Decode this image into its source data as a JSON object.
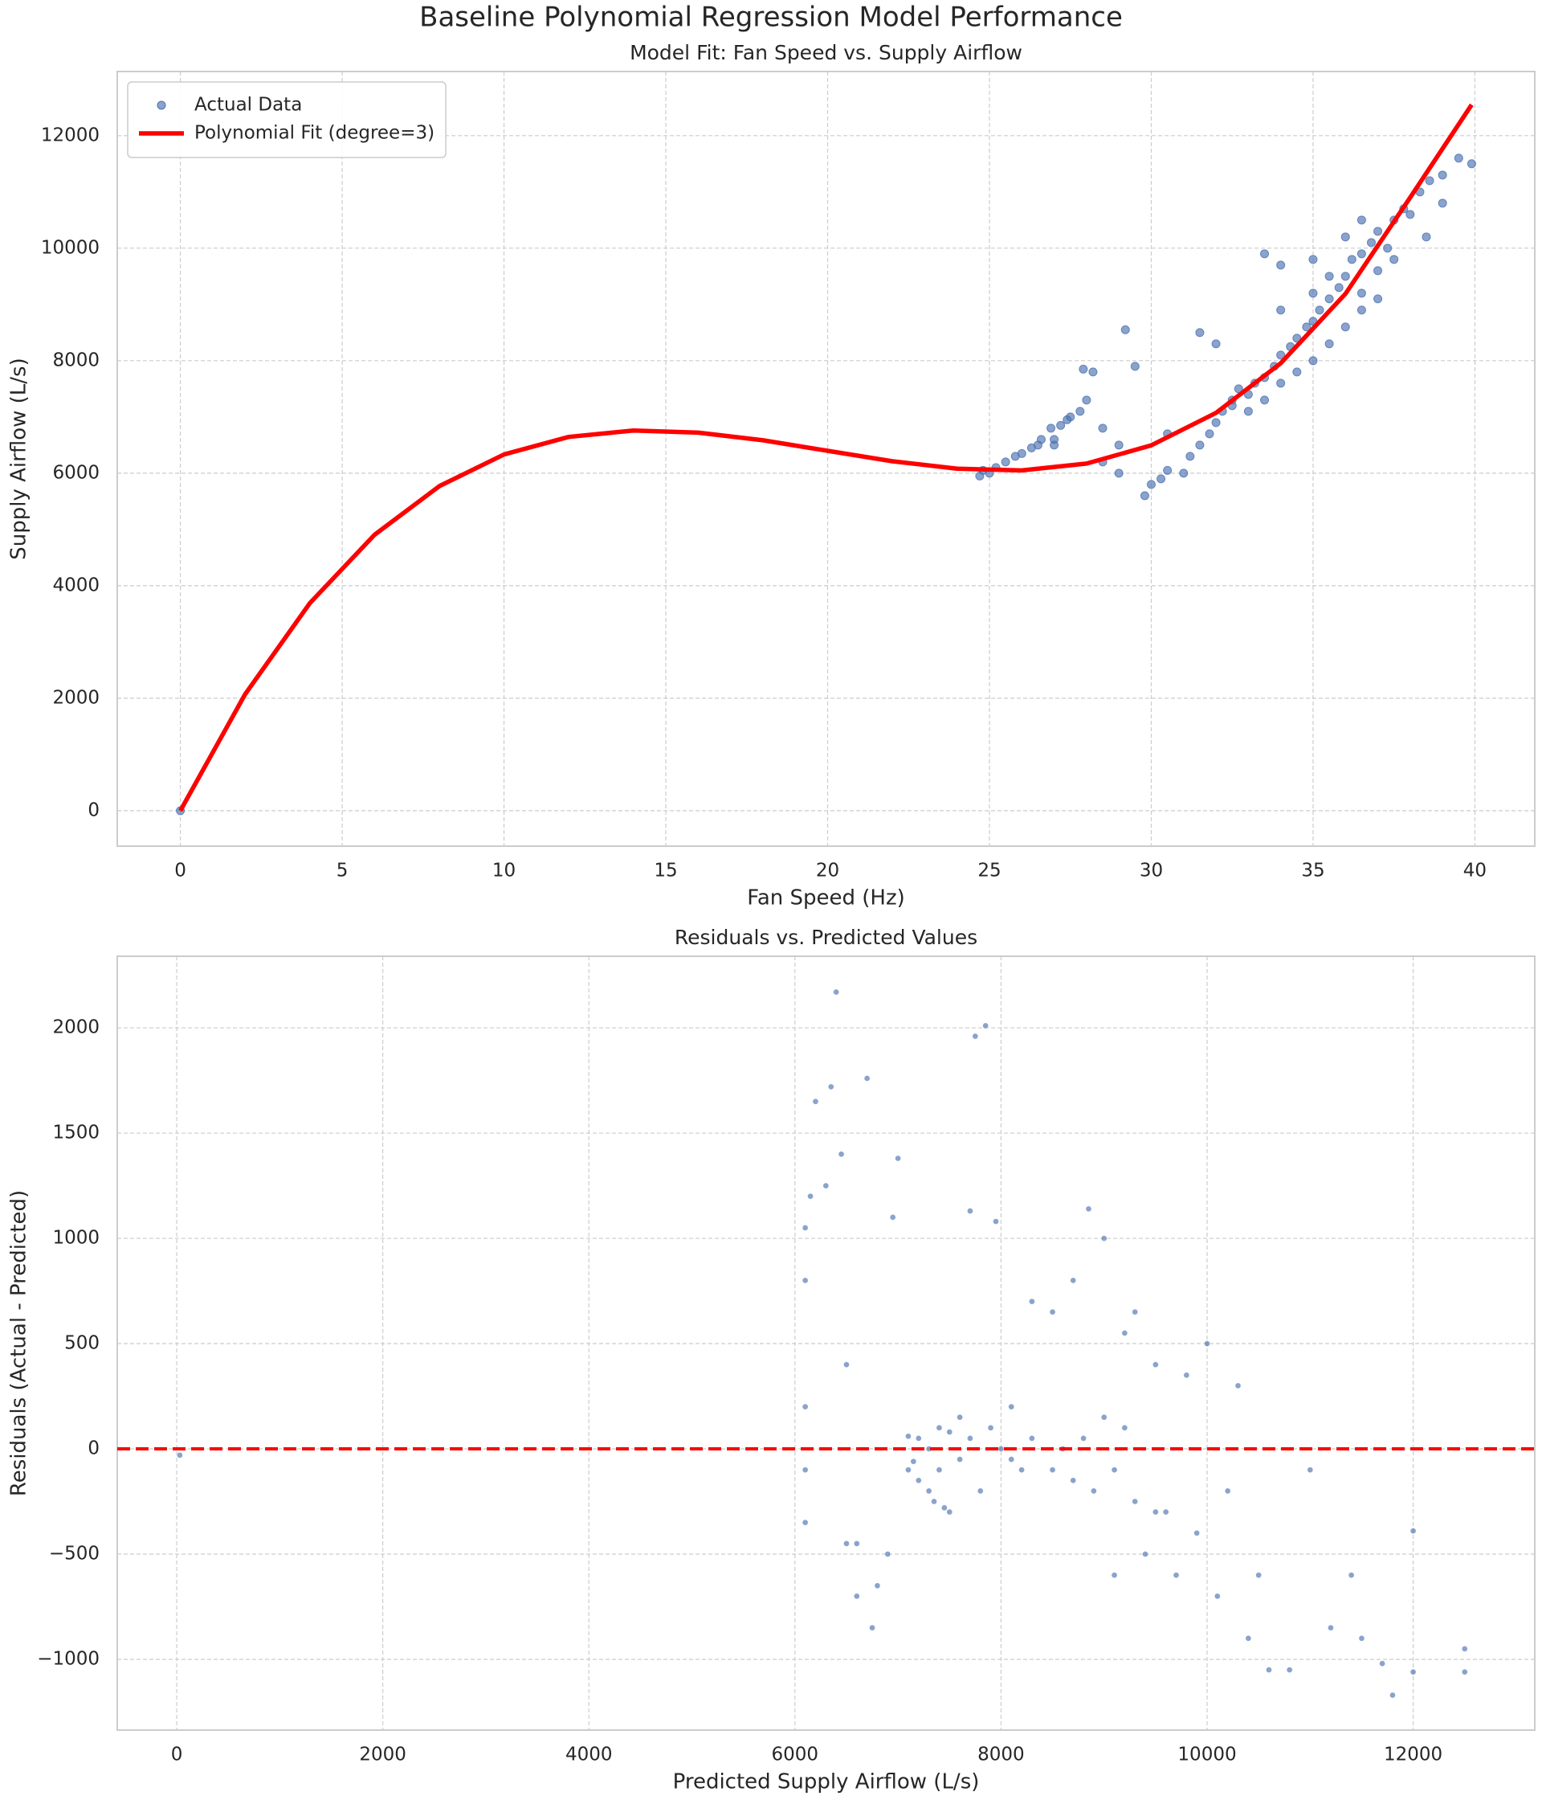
{
  "title": "Baseline Polynomial Regression Model Performance",
  "chart_data": [
    {
      "type": "scatter",
      "title": "Model Fit: Fan Speed vs. Supply Airflow",
      "xlabel": "Fan Speed (Hz)",
      "ylabel": "Supply Airflow (L/s)",
      "xlim": [
        -1.95,
        41.85
      ],
      "ylim": [
        -630,
        13140
      ],
      "xticks": [
        0,
        5,
        10,
        15,
        20,
        25,
        30,
        35,
        40
      ],
      "yticks": [
        0,
        2000,
        4000,
        6000,
        8000,
        10000,
        12000
      ],
      "grid": true,
      "legend": "upper left",
      "series": [
        {
          "name": "Actual Data",
          "type": "scatter",
          "color": "#4c72b0",
          "x": [
            0,
            24.7,
            24.8,
            25,
            25.2,
            25.5,
            25.8,
            26,
            26.3,
            26.6,
            26.9,
            27.2,
            27.5,
            27.8,
            28,
            27.9,
            28.2,
            26.5,
            27,
            27.4,
            28.5,
            29,
            29.2,
            29.5,
            29.8,
            30,
            30.3,
            30.5,
            31,
            31.2,
            31.5,
            31.8,
            32,
            32.2,
            32.5,
            32.7,
            33,
            33.2,
            33.5,
            33.8,
            34,
            34.3,
            34.5,
            34.8,
            35,
            35.2,
            35.5,
            35.8,
            36,
            36.2,
            36.5,
            36.8,
            37,
            37.3,
            37.5,
            37.8,
            38,
            38.3,
            38.6,
            39,
            39.5,
            39.9,
            33.5,
            34,
            35,
            35.5,
            36,
            36.5,
            37,
            32.5,
            33,
            33.5,
            34,
            34.5,
            35,
            35.5,
            36,
            36.5,
            37,
            31.5,
            32,
            34,
            35,
            28.5,
            29,
            27,
            30.5,
            36.5,
            37.5,
            38.5,
            39
          ],
          "values": [
            0,
            5950,
            6050,
            6000,
            6100,
            6200,
            6300,
            6350,
            6450,
            6600,
            6800,
            6850,
            7000,
            7100,
            7300,
            7850,
            7800,
            6500,
            6600,
            6950,
            6800,
            6500,
            8550,
            7900,
            5600,
            5800,
            5900,
            6050,
            6000,
            6300,
            6500,
            6700,
            6900,
            7100,
            7300,
            7500,
            7400,
            7600,
            7700,
            7900,
            8100,
            8250,
            8400,
            8600,
            8700,
            8900,
            9100,
            9300,
            9500,
            9800,
            9900,
            10100,
            10300,
            10000,
            10500,
            10700,
            10600,
            11000,
            11200,
            11300,
            11600,
            11500,
            9900,
            9700,
            9800,
            9500,
            10200,
            9200,
            9600,
            7200,
            7100,
            7300,
            7600,
            7800,
            8000,
            8300,
            8600,
            8900,
            9100,
            8500,
            8300,
            8900,
            9200,
            6200,
            6000,
            6500,
            6700,
            10500,
            9800,
            10200,
            10800
          ]
        },
        {
          "name": "Polynomial Fit (degree=3)",
          "type": "line",
          "color": "#ff0000",
          "x": [
            0,
            2,
            4,
            6,
            8,
            10,
            12,
            14,
            16,
            18,
            20,
            22,
            24,
            26,
            28,
            30,
            32,
            34,
            36,
            38,
            39.9
          ],
          "values": [
            0,
            2070,
            3689,
            4905,
            5769,
            6333,
            6645,
            6758,
            6721,
            6585,
            6398,
            6212,
            6080,
            6049,
            6171,
            6495,
            7072,
            7954,
            9189,
            10900,
            12550
          ]
        }
      ]
    },
    {
      "type": "scatter",
      "title": "Residuals vs. Predicted Values",
      "xlabel": "Predicted Supply Airflow (L/s)",
      "ylabel": "Residuals (Actual - Predicted)",
      "xlim": [
        -577,
        13180
      ],
      "ylim": [
        -1336,
        2340
      ],
      "xticks": [
        0,
        2000,
        4000,
        6000,
        8000,
        10000,
        12000
      ],
      "yticks": [
        {
          "value": -1000,
          "label": "−1000"
        },
        {
          "value": -500,
          "label": "−500"
        },
        0,
        500,
        1000,
        1500,
        2000
      ],
      "grid": true,
      "hline": 0,
      "hline_color": "#ff0000",
      "series": [
        {
          "type": "scatter",
          "color": "#4c72b0",
          "x": [
            30,
            6100,
            6100,
            6100,
            6100,
            6100,
            6150,
            6200,
            6300,
            6350,
            6400,
            6450,
            6500,
            6600,
            6700,
            6750,
            6900,
            6950,
            7000,
            7100,
            7200,
            7300,
            7400,
            7500,
            7600,
            7700,
            7750,
            7850,
            7950,
            7800,
            8000,
            8100,
            8200,
            8300,
            8500,
            8700,
            8850,
            9000,
            9100,
            9200,
            9300,
            9400,
            9500,
            9600,
            9700,
            9800,
            9900,
            10000,
            10100,
            10200,
            10300,
            10400,
            10500,
            10600,
            10800,
            11000,
            11200,
            11500,
            11700,
            11800,
            12000,
            12000,
            12500,
            12500,
            7200,
            7300,
            7400,
            7500,
            7600,
            7700,
            7900,
            8100,
            8300,
            8500,
            8700,
            8900,
            9100,
            9300,
            9500,
            8600,
            8800,
            9000,
            9200,
            7350,
            7450,
            7100,
            7150,
            6500,
            6600,
            6800,
            11400
          ],
          "values": [
            -30,
            -100,
            200,
            800,
            1050,
            -350,
            1200,
            1650,
            1250,
            1720,
            2170,
            1400,
            -450,
            -700,
            1760,
            -850,
            -500,
            1100,
            1380,
            -100,
            50,
            -200,
            100,
            -300,
            150,
            1130,
            1960,
            2010,
            1080,
            -200,
            0,
            200,
            -100,
            700,
            650,
            800,
            1140,
            1000,
            -600,
            550,
            650,
            -500,
            400,
            -300,
            -600,
            350,
            -400,
            500,
            -700,
            -200,
            300,
            -900,
            -600,
            -1050,
            -1050,
            -100,
            -850,
            -900,
            -1020,
            -1170,
            -1060,
            -390,
            -1060,
            -950,
            -150,
            0,
            -100,
            80,
            -50,
            50,
            100,
            -50,
            50,
            -100,
            -150,
            -200,
            -100,
            -250,
            -300,
            0,
            50,
            150,
            100,
            -250,
            -280,
            60,
            -60,
            400,
            -450,
            -650,
            -600
          ]
        }
      ]
    }
  ]
}
